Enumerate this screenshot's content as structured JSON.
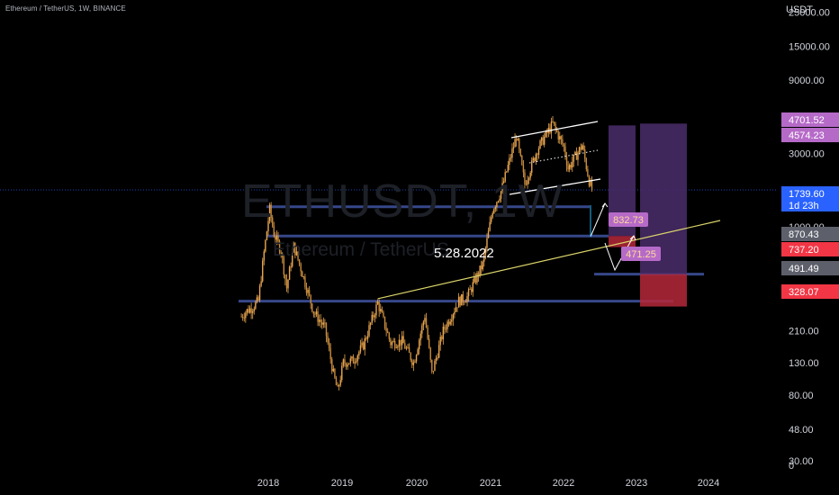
{
  "header": {
    "symbol_description": "Ethereum / TetherUS, 1W, BINANCE",
    "currency": "USDT"
  },
  "watermark": {
    "ticker": "ETHUSDT, 1W",
    "name": "Ethereum / TetherUS"
  },
  "annotation": {
    "date_text": "5.28.2022"
  },
  "colors": {
    "background": "#000000",
    "candle": "#e8a651",
    "level_line": "#3c4f9a",
    "trendline": "#d9d36a",
    "channel": "#ffffff",
    "price_box": "#4a2d6b",
    "target_box": "#b5283a",
    "badge_purple": "#b66ac8",
    "badge_blue": "#2962ff",
    "badge_red": "#f23645",
    "badge_gray": "#5d606b"
  },
  "chart_data": {
    "type": "candlestick",
    "symbol": "ETHUSDT",
    "interval": "1W",
    "exchange": "BINANCE",
    "y_scale": "log",
    "x_ticks": [
      "2018",
      "2019",
      "2020",
      "2021",
      "2022",
      "2023",
      "2024"
    ],
    "y_ticks": [
      25000,
      15000,
      9000,
      3000,
      1000,
      210,
      130,
      80,
      48,
      30,
      0
    ],
    "y_tick_labels": [
      "25000.00",
      "15000.00",
      "9000.00",
      "3000.00",
      "1000.00",
      "210.00",
      "130.00",
      "80.00",
      "48.00",
      "30.00",
      "0"
    ],
    "weekly_closes": [
      {
        "date": "2017-08-21",
        "close": 260
      },
      {
        "date": "2017-09-11",
        "close": 280
      },
      {
        "date": "2017-10-16",
        "close": 300
      },
      {
        "date": "2017-11-13",
        "close": 330
      },
      {
        "date": "2017-12-11",
        "close": 680
      },
      {
        "date": "2018-01-08",
        "close": 1300
      },
      {
        "date": "2018-01-29",
        "close": 900
      },
      {
        "date": "2018-03-05",
        "close": 700
      },
      {
        "date": "2018-04-02",
        "close": 400
      },
      {
        "date": "2018-05-07",
        "close": 750
      },
      {
        "date": "2018-06-18",
        "close": 500
      },
      {
        "date": "2018-08-13",
        "close": 280
      },
      {
        "date": "2018-10-08",
        "close": 220
      },
      {
        "date": "2018-11-19",
        "close": 110
      },
      {
        "date": "2018-12-10",
        "close": 85
      },
      {
        "date": "2019-01-07",
        "close": 130
      },
      {
        "date": "2019-02-25",
        "close": 135
      },
      {
        "date": "2019-04-15",
        "close": 170
      },
      {
        "date": "2019-06-24",
        "close": 320
      },
      {
        "date": "2019-08-26",
        "close": 175
      },
      {
        "date": "2019-10-21",
        "close": 180
      },
      {
        "date": "2019-12-16",
        "close": 130
      },
      {
        "date": "2020-02-10",
        "close": 265
      },
      {
        "date": "2020-03-16",
        "close": 110
      },
      {
        "date": "2020-05-11",
        "close": 210
      },
      {
        "date": "2020-07-27",
        "close": 330
      },
      {
        "date": "2020-09-07",
        "close": 350
      },
      {
        "date": "2020-11-23",
        "close": 570
      },
      {
        "date": "2021-01-11",
        "close": 1300
      },
      {
        "date": "2021-02-22",
        "close": 1700
      },
      {
        "date": "2021-05-10",
        "close": 3900
      },
      {
        "date": "2021-06-21",
        "close": 1900
      },
      {
        "date": "2021-08-23",
        "close": 3200
      },
      {
        "date": "2021-11-08",
        "close": 4700
      },
      {
        "date": "2022-01-03",
        "close": 3300
      },
      {
        "date": "2022-01-24",
        "close": 2400
      },
      {
        "date": "2022-04-04",
        "close": 3400
      },
      {
        "date": "2022-05-09",
        "close": 2000
      },
      {
        "date": "2022-05-23",
        "close": 1739.6
      }
    ],
    "horizontal_levels": [
      1350,
      870.43,
      491.49,
      328.07
    ],
    "trendline": {
      "start": {
        "date": "2019-06-24",
        "price": 340
      },
      "end": {
        "date": "2024-03-01",
        "price": 1100
      }
    },
    "projections": [
      {
        "label": "832.73"
      },
      {
        "label": "471.25"
      }
    ],
    "price_labels": [
      {
        "value": "4701.52",
        "kind": "purple"
      },
      {
        "value": "4574.23",
        "kind": "purple"
      },
      {
        "value": "1739.60",
        "kind": "blue",
        "sub": "1d 23h"
      },
      {
        "value": "870.43",
        "kind": "gray"
      },
      {
        "value": "737.20",
        "kind": "red"
      },
      {
        "value": "491.49",
        "kind": "gray"
      },
      {
        "value": "328.07",
        "kind": "red"
      }
    ]
  }
}
